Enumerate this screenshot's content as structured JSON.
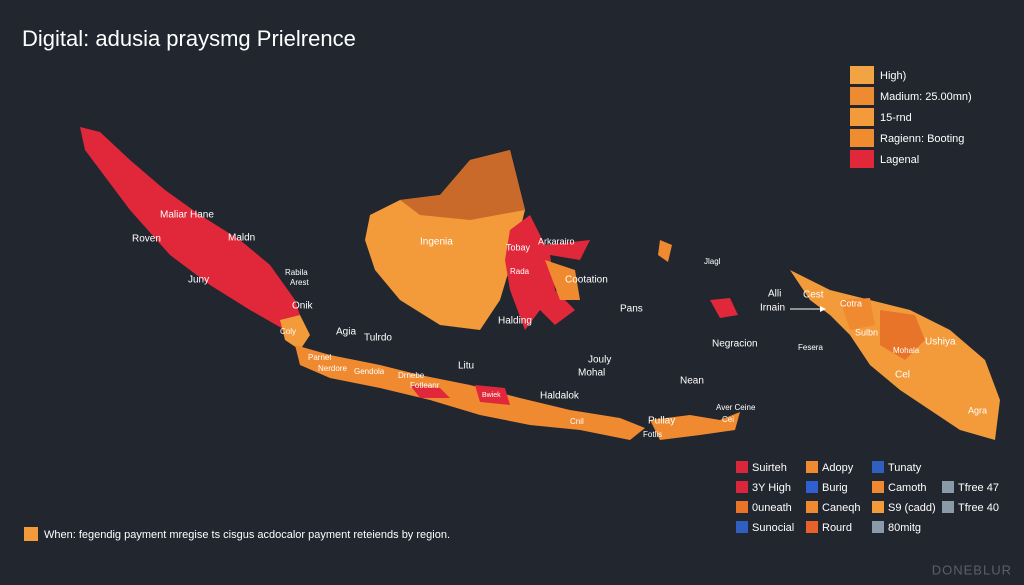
{
  "title": "Digital: adusia praysmg Prielrence",
  "legend": [
    {
      "label": "High)",
      "color": "#f2a344"
    },
    {
      "label": "Madium: 25.00mn)",
      "color": "#ee8a30"
    },
    {
      "label": "15-rnd",
      "color": "#f39a3a"
    },
    {
      "label": "Ragienn: Booting",
      "color": "#f08c30"
    },
    {
      "label": "Lagenal",
      "color": "#e0283a"
    }
  ],
  "map_labels": [
    "Maliar Hane",
    "Roven",
    "Maldn",
    "Juny",
    "Rabila",
    "Arest",
    "Onik",
    "Coly",
    "Agia",
    "Tulrdo",
    "Parnel",
    "Nerdore",
    "Gendola",
    "Drnebe",
    "Fotleanr",
    "Litu",
    "Bwiek",
    "Haldalok",
    "Cnil",
    "Pullay",
    "Fotlis",
    "Ingenia",
    "Tobay",
    "Arkarairo",
    "Rada",
    "Cootation",
    "Halding",
    "Pans",
    "Jouly",
    "Mohal",
    "Jlagl",
    "Alli",
    "Irnain",
    "Cest",
    "Cotra",
    "Sulbn",
    "Ushiya",
    "Mohala",
    "Cel",
    "Agra",
    "Negracion",
    "Fesera",
    "Nean",
    "Aver Ceine",
    "Cei"
  ],
  "key": [
    [
      {
        "label": "Suirteh",
        "color": "#d9263a"
      },
      {
        "label": "Adopy",
        "color": "#f08a30"
      },
      {
        "label": "Tunaty",
        "color": "#2f5fc0"
      }
    ],
    [
      {
        "label": "3Y High",
        "color": "#d9263a"
      },
      {
        "label": "Burig",
        "color": "#2f5fd0"
      },
      {
        "label": "Camoth",
        "color": "#f08a30"
      },
      {
        "label": "Tfree 47",
        "color": "#8a9aa8"
      }
    ],
    [
      {
        "label": "0uneath",
        "color": "#e8742a"
      },
      {
        "label": "Caneqh",
        "color": "#f08a30"
      },
      {
        "label": "S9 (cadd)",
        "color": "#f39a3a"
      },
      {
        "label": "Tfree 40",
        "color": "#8a9aa8"
      }
    ],
    [
      {
        "label": "Sunocial",
        "color": "#2f5fc0"
      },
      {
        "label": "Rourd",
        "color": "#e8602a"
      },
      {
        "label": "80mitg",
        "color": "#8a9aa8"
      }
    ]
  ],
  "footnote": {
    "text": "When: fegendig payment mregise ts cisgus acdocalor payment reteiends by region.",
    "color": "#f39a3a"
  },
  "watermark": "DONEBLUR"
}
